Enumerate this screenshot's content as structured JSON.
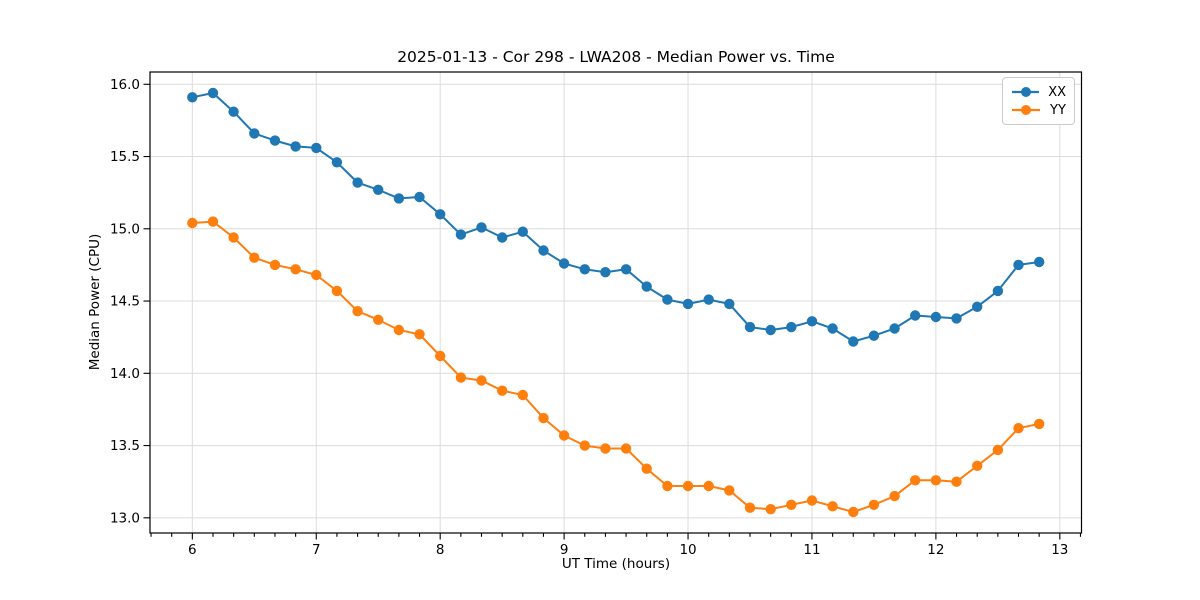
{
  "chart_data": {
    "type": "line",
    "title": "2025-01-13 - Cor 298 - LWA208 - Median Power vs. Time",
    "xlabel": "UT Time (hours)",
    "ylabel": "Median Power (CPU)",
    "x": [
      6.0,
      6.1667,
      6.3333,
      6.5,
      6.6667,
      6.8333,
      7.0,
      7.1667,
      7.3333,
      7.5,
      7.6667,
      7.8333,
      8.0,
      8.1667,
      8.3333,
      8.5,
      8.6667,
      8.8333,
      9.0,
      9.1667,
      9.3333,
      9.5,
      9.6667,
      9.8333,
      10.0,
      10.1667,
      10.3333,
      10.5,
      10.6667,
      10.8333,
      11.0,
      11.1667,
      11.3333,
      11.5,
      11.6667,
      11.8333,
      12.0,
      12.1667,
      12.3333,
      12.5,
      12.6667,
      12.8333
    ],
    "series": [
      {
        "name": "XX",
        "color": "#1f77b4",
        "values": [
          15.91,
          15.94,
          15.81,
          15.66,
          15.61,
          15.57,
          15.56,
          15.46,
          15.32,
          15.27,
          15.21,
          15.22,
          15.1,
          14.96,
          15.01,
          14.94,
          14.98,
          14.85,
          14.76,
          14.72,
          14.7,
          14.72,
          14.6,
          14.51,
          14.48,
          14.51,
          14.48,
          14.32,
          14.3,
          14.32,
          14.36,
          14.31,
          14.22,
          14.26,
          14.31,
          14.4,
          14.39,
          14.38,
          14.46,
          14.57,
          14.75,
          14.77
        ]
      },
      {
        "name": "YY",
        "color": "#ff7f0e",
        "values": [
          15.04,
          15.05,
          14.94,
          14.8,
          14.75,
          14.72,
          14.68,
          14.57,
          14.43,
          14.37,
          14.3,
          14.27,
          14.12,
          13.97,
          13.95,
          13.88,
          13.85,
          13.69,
          13.57,
          13.5,
          13.48,
          13.48,
          13.34,
          13.22,
          13.22,
          13.22,
          13.19,
          13.07,
          13.06,
          13.09,
          13.12,
          13.08,
          13.04,
          13.09,
          13.15,
          13.26,
          13.26,
          13.25,
          13.36,
          13.47,
          13.62,
          13.65
        ]
      }
    ],
    "xlim": [
      5.6583,
      13.175
    ],
    "ylim": [
      12.895,
      16.085
    ],
    "xticks": [
      6,
      7,
      8,
      9,
      10,
      11,
      12,
      13
    ],
    "xtick_labels": [
      "6",
      "7",
      "8",
      "9",
      "10",
      "11",
      "12",
      "13"
    ],
    "yticks": [
      13.0,
      13.5,
      14.0,
      14.5,
      15.0,
      15.5,
      16.0
    ],
    "ytick_labels": [
      "13.0",
      "13.5",
      "14.0",
      "14.5",
      "15.0",
      "15.5",
      "16.0"
    ],
    "minor_xtick_step": 0.1666667,
    "grid": true,
    "grid_color": "#dcdcdc",
    "legend_position": "top-right"
  }
}
